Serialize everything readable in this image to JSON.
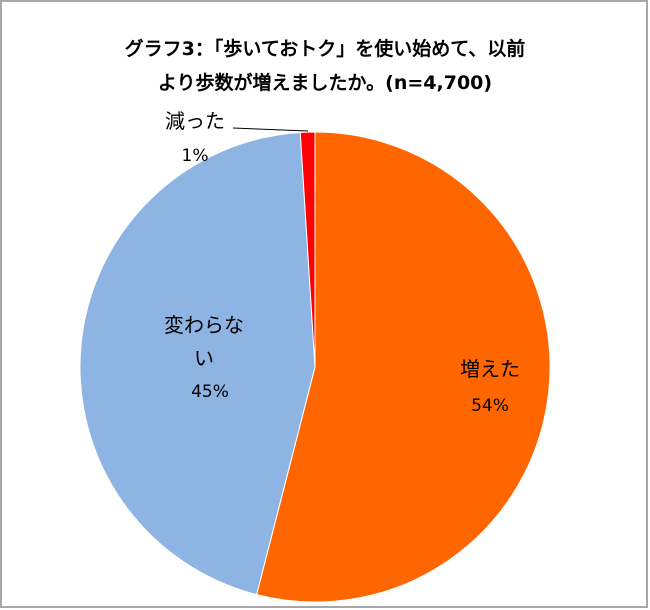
{
  "chart_data": {
    "type": "pie",
    "title": [
      "グラフ3：「歩いておトク」を使い始めて、以前",
      "より歩数が増えましたか。(n=4,700)"
    ],
    "categories": [
      "増えた",
      "変わらない",
      "減った"
    ],
    "values": [
      54,
      45,
      1
    ],
    "value_labels": [
      "54%",
      "45%",
      "1%"
    ],
    "colors": [
      "#ff6600",
      "#8eb4e3",
      "#ff0000"
    ]
  }
}
